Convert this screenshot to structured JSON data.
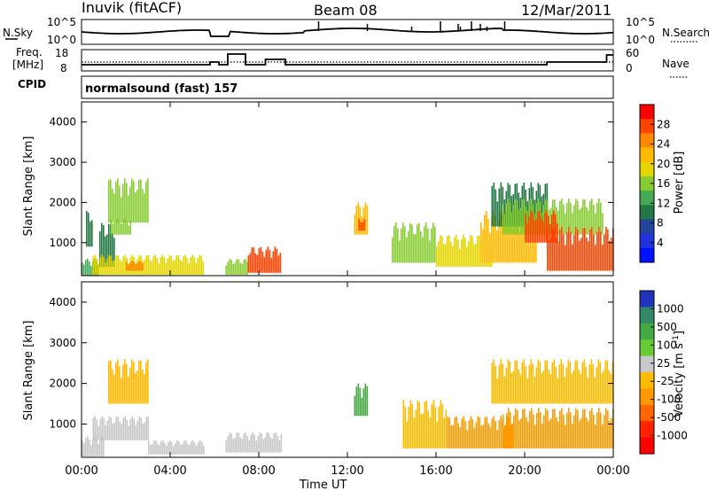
{
  "header": {
    "station": "Inuvik (fitACF)",
    "beam": "Beam 08",
    "date": "12/Mar/2011"
  },
  "noise_panel": {
    "left_label": "N.Sky",
    "right_label": "N.Search",
    "left_ticks": [
      "10^5",
      "10^0"
    ],
    "right_ticks": [
      "10^5",
      "10^0"
    ]
  },
  "freq_panel": {
    "left_label_1": "Freq.",
    "left_label_2": "[MHz]",
    "right_label": "Nave",
    "left_ticks": [
      "18",
      "8"
    ],
    "right_ticks": [
      "60",
      "0"
    ]
  },
  "cpid": {
    "label": "CPID",
    "value": "normalsound (fast) 157"
  },
  "power_panel": {
    "ylabel": "Slant Range [km]",
    "y_ticks": [
      "4000",
      "3000",
      "2000",
      "1000"
    ],
    "colorbar_label": "Power [dB]",
    "colorbar_ticks": [
      "28",
      "24",
      "20",
      "16",
      "12",
      "8",
      "4"
    ],
    "colorbar_colors": [
      "#ff0000",
      "#ff4400",
      "#ff8800",
      "#ffbb00",
      "#e6d600",
      "#88cc33",
      "#44aa55",
      "#227744",
      "#224499",
      "#2233dd",
      "#0011ff"
    ]
  },
  "velocity_panel": {
    "ylabel": "Slant Range [km]",
    "y_ticks": [
      "4000",
      "3000",
      "2000",
      "1000"
    ],
    "colorbar_label": "Velocity [m s",
    "colorbar_label_sup": "-1",
    "colorbar_label_end": "]",
    "colorbar_ticks": [
      "1000",
      "500",
      "100",
      "25",
      "-25",
      "-100",
      "-500",
      "-1000"
    ],
    "colorbar_colors": [
      "#2233bb",
      "#338866",
      "#44aa44",
      "#66cc33",
      "#c8c8c8",
      "#ffbb00",
      "#ff9900",
      "#ff6600",
      "#ff2200",
      "#ff0000"
    ]
  },
  "x_axis": {
    "ticks": [
      "00:00",
      "04:00",
      "08:00",
      "12:00",
      "16:00",
      "20:00",
      "00:00"
    ],
    "label": "Time UT"
  },
  "chart_data": [
    {
      "type": "heatmap",
      "title": "Power [dB]",
      "xlabel": "Time UT",
      "ylabel": "Slant Range [km]",
      "xlim_hours": [
        0,
        24
      ],
      "ylim_km": [
        180,
        4500
      ],
      "colorbar_range": [
        0,
        30
      ],
      "cells": [
        {
          "t": [
            0.0,
            0.8
          ],
          "r": [
            180,
            600
          ],
          "db": 12
        },
        {
          "t": [
            0.2,
            0.5
          ],
          "r": [
            900,
            1800
          ],
          "db": 10
        },
        {
          "t": [
            0.8,
            1.5
          ],
          "r": [
            400,
            1500
          ],
          "db": 8
        },
        {
          "t": [
            1.2,
            3.0
          ],
          "r": [
            1500,
            2600
          ],
          "db": 14
        },
        {
          "t": [
            1.3,
            2.2
          ],
          "r": [
            1200,
            1600
          ],
          "db": 16
        },
        {
          "t": [
            0.5,
            5.5
          ],
          "r": [
            200,
            700
          ],
          "db": 18
        },
        {
          "t": [
            2.0,
            2.8
          ],
          "r": [
            300,
            550
          ],
          "db": 24
        },
        {
          "t": [
            6.5,
            7.5
          ],
          "r": [
            200,
            600
          ],
          "db": 16
        },
        {
          "t": [
            7.5,
            9.0
          ],
          "r": [
            250,
            900
          ],
          "db": 26
        },
        {
          "t": [
            12.3,
            12.9
          ],
          "r": [
            1200,
            2000
          ],
          "db": 20
        },
        {
          "t": [
            12.5,
            12.8
          ],
          "r": [
            1300,
            1600
          ],
          "db": 28
        },
        {
          "t": [
            14.0,
            16.0
          ],
          "r": [
            500,
            1500
          ],
          "db": 14
        },
        {
          "t": [
            16.0,
            18.5
          ],
          "r": [
            400,
            1200
          ],
          "db": 18
        },
        {
          "t": [
            18.0,
            20.5
          ],
          "r": [
            500,
            1800
          ],
          "db": 22
        },
        {
          "t": [
            18.5,
            21.0
          ],
          "r": [
            1400,
            2500
          ],
          "db": 10
        },
        {
          "t": [
            19.0,
            23.5
          ],
          "r": [
            1200,
            2100
          ],
          "db": 14
        },
        {
          "t": [
            21.0,
            24.0
          ],
          "r": [
            300,
            1400
          ],
          "db": 28
        },
        {
          "t": [
            20.0,
            21.5
          ],
          "r": [
            1000,
            1800
          ],
          "db": 26
        }
      ]
    },
    {
      "type": "heatmap",
      "title": "Velocity [m s-1]",
      "xlabel": "Time UT",
      "ylabel": "Slant Range [km]",
      "xlim_hours": [
        0,
        24
      ],
      "ylim_km": [
        180,
        4500
      ],
      "colorbar_range": [
        -1000,
        1000
      ],
      "cells": [
        {
          "t": [
            0.0,
            1.0
          ],
          "r": [
            200,
            700
          ],
          "v": 150
        },
        {
          "t": [
            0.5,
            3.0
          ],
          "r": [
            600,
            1200
          ],
          "v": 80
        },
        {
          "t": [
            1.2,
            3.0
          ],
          "r": [
            1500,
            2600
          ],
          "v": -150
        },
        {
          "t": [
            3.0,
            5.5
          ],
          "r": [
            250,
            600
          ],
          "v": 120
        },
        {
          "t": [
            6.5,
            9.0
          ],
          "r": [
            300,
            800
          ],
          "v": 200
        },
        {
          "t": [
            12.3,
            12.9
          ],
          "r": [
            1200,
            2000
          ],
          "v": 600
        },
        {
          "t": [
            14.5,
            16.5
          ],
          "r": [
            400,
            1600
          ],
          "v": -200
        },
        {
          "t": [
            16.5,
            19.5
          ],
          "r": [
            400,
            1200
          ],
          "v": -300
        },
        {
          "t": [
            18.5,
            24.0
          ],
          "r": [
            1500,
            2600
          ],
          "v": 0
        },
        {
          "t": [
            19.0,
            24.0
          ],
          "r": [
            400,
            1400
          ],
          "v": -250
        }
      ]
    }
  ]
}
